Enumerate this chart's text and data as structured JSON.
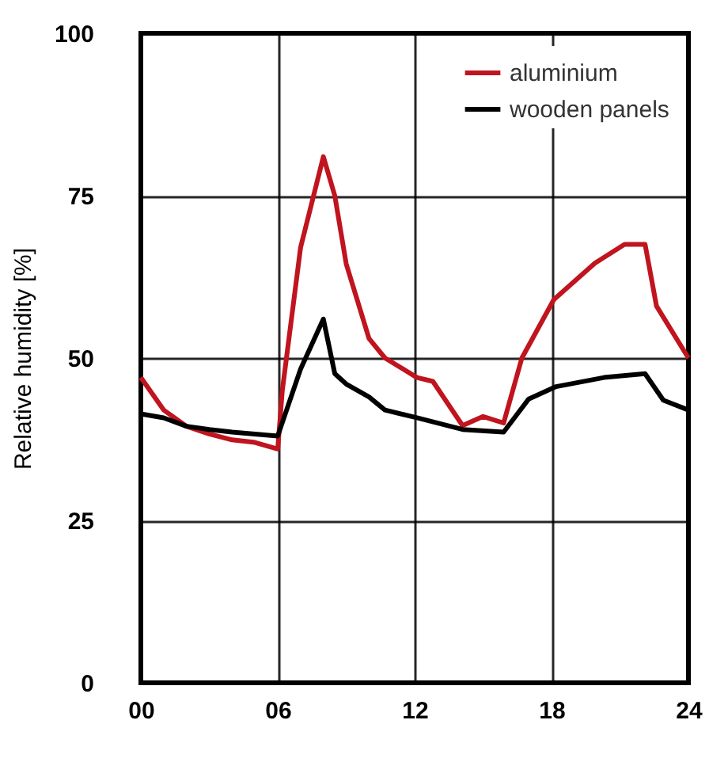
{
  "chart_data": {
    "type": "line",
    "ylabel": "Relative humidity [%]",
    "xlim": [
      0,
      24
    ],
    "xticks": [
      {
        "value": 0,
        "label": "00"
      },
      {
        "value": 6,
        "label": "06"
      },
      12,
      18,
      24
    ],
    "ylim": [
      0,
      100
    ],
    "yticks": [
      0,
      25,
      50,
      75,
      100
    ],
    "grid": true,
    "legend": "top right",
    "series": [
      {
        "name": "aluminium",
        "color": "#c0141e",
        "x": [
          0,
          1,
          2,
          3,
          4,
          5,
          6,
          6.2,
          7,
          8,
          8.5,
          9,
          10,
          10.7,
          12.1,
          12.8,
          14.1,
          15,
          15.9,
          16.7,
          18.1,
          19.9,
          21.2,
          22.1,
          22.6,
          24
        ],
        "values": [
          47,
          42,
          39.5,
          38.3,
          37.4,
          37,
          36,
          45,
          67,
          81,
          75,
          64.5,
          53,
          50,
          47,
          46.4,
          39.6,
          41,
          40,
          50,
          59,
          64.6,
          67.5,
          67.5,
          58,
          50
        ]
      },
      {
        "name": "wooden panels",
        "color": "#000000",
        "x": [
          0,
          1,
          2,
          3,
          4,
          5,
          6,
          7,
          8,
          8.5,
          9,
          10,
          10.7,
          12.1,
          14.1,
          15.9,
          17,
          18.2,
          20.3,
          22.1,
          22.9,
          24
        ],
        "values": [
          41.4,
          40.8,
          39.5,
          39,
          38.6,
          38.3,
          38,
          48.3,
          56,
          47.6,
          46,
          44,
          42,
          40.8,
          39,
          38.6,
          43.7,
          45.6,
          47,
          47.6,
          43.5,
          42
        ]
      }
    ]
  }
}
